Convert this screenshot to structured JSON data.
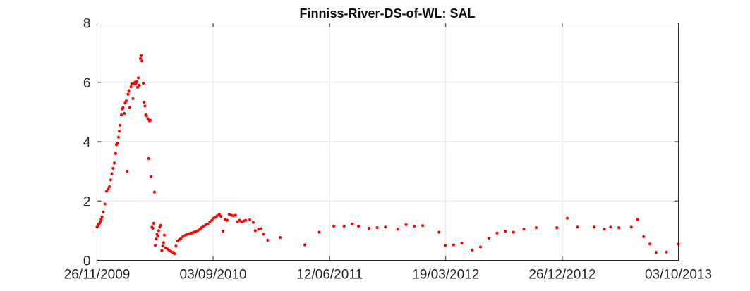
{
  "chart_data": {
    "type": "scatter",
    "title": "Finniss-River-DS-of-WL: SAL",
    "xlabel": "",
    "ylabel": "",
    "x_axis": {
      "kind": "date",
      "range": [
        "2009-11-26",
        "2013-10-03"
      ],
      "ticks": [
        "2009-11-26",
        "2010-09-03",
        "2011-06-12",
        "2012-03-19",
        "2012-12-26",
        "2013-10-03"
      ],
      "tick_labels": [
        "26/11/2009",
        "03/09/2010",
        "12/06/2011",
        "19/03/2012",
        "26/12/2012",
        "03/10/2013"
      ]
    },
    "y_axis": {
      "range": [
        0,
        8
      ],
      "ticks": [
        0,
        2,
        4,
        6,
        8
      ],
      "tick_labels": [
        "0",
        "2",
        "4",
        "6",
        "8"
      ]
    },
    "grid": true,
    "marker_color": "#ff0000",
    "series": [
      {
        "points": [
          [
            "2009-11-26",
            1.12
          ],
          [
            "2009-11-28",
            1.15
          ],
          [
            "2009-11-30",
            1.22
          ],
          [
            "2009-12-02",
            1.25
          ],
          [
            "2009-12-04",
            1.3
          ],
          [
            "2009-12-06",
            1.38
          ],
          [
            "2009-12-08",
            1.47
          ],
          [
            "2009-12-11",
            1.63
          ],
          [
            "2009-12-15",
            1.9
          ],
          [
            "2009-12-19",
            2.33
          ],
          [
            "2009-12-23",
            2.4
          ],
          [
            "2009-12-26",
            2.48
          ],
          [
            "2009-12-29",
            2.71
          ],
          [
            "2010-01-01",
            2.92
          ],
          [
            "2010-01-04",
            3.1
          ],
          [
            "2010-01-07",
            3.28
          ],
          [
            "2010-01-10",
            3.6
          ],
          [
            "2010-01-12",
            3.9
          ],
          [
            "2010-01-14",
            3.95
          ],
          [
            "2010-01-17",
            4.15
          ],
          [
            "2010-01-19",
            4.35
          ],
          [
            "2010-01-21",
            4.55
          ],
          [
            "2010-01-24",
            4.9
          ],
          [
            "2010-01-26",
            5.1
          ],
          [
            "2010-01-28",
            5.15
          ],
          [
            "2010-01-31",
            4.95
          ],
          [
            "2010-02-02",
            5.3
          ],
          [
            "2010-02-05",
            5.37
          ],
          [
            "2010-02-07",
            3.0
          ],
          [
            "2010-02-09",
            5.6
          ],
          [
            "2010-02-11",
            5.7
          ],
          [
            "2010-02-13",
            5.15
          ],
          [
            "2010-02-16",
            5.85
          ],
          [
            "2010-02-18",
            5.95
          ],
          [
            "2010-02-21",
            5.45
          ],
          [
            "2010-02-23",
            5.95
          ],
          [
            "2010-02-26",
            6.0
          ],
          [
            "2010-02-28",
            5.95
          ],
          [
            "2010-03-02",
            6.02
          ],
          [
            "2010-03-04",
            5.83
          ],
          [
            "2010-03-06",
            6.15
          ],
          [
            "2010-03-08",
            5.9
          ],
          [
            "2010-03-11",
            6.8
          ],
          [
            "2010-03-13",
            6.9
          ],
          [
            "2010-03-15",
            6.72
          ],
          [
            "2010-03-18",
            5.97
          ],
          [
            "2010-03-20",
            5.33
          ],
          [
            "2010-03-22",
            5.2
          ],
          [
            "2010-03-24",
            4.9
          ],
          [
            "2010-03-26",
            4.87
          ],
          [
            "2010-03-29",
            4.77
          ],
          [
            "2010-03-31",
            3.43
          ],
          [
            "2010-04-02",
            4.7
          ],
          [
            "2010-04-04",
            4.72
          ],
          [
            "2010-04-06",
            2.82
          ],
          [
            "2010-04-08",
            1.12
          ],
          [
            "2010-04-10",
            1.08
          ],
          [
            "2010-04-12",
            1.25
          ],
          [
            "2010-04-14",
            2.3
          ],
          [
            "2010-04-16",
            0.5
          ],
          [
            "2010-04-18",
            0.72
          ],
          [
            "2010-04-20",
            0.88
          ],
          [
            "2010-04-22",
            0.82
          ],
          [
            "2010-04-24",
            1.0
          ],
          [
            "2010-04-27",
            1.12
          ],
          [
            "2010-04-29",
            1.18
          ],
          [
            "2010-05-02",
            0.33
          ],
          [
            "2010-05-04",
            0.48
          ],
          [
            "2010-05-06",
            0.6
          ],
          [
            "2010-05-08",
            0.85
          ],
          [
            "2010-05-11",
            0.42
          ],
          [
            "2010-05-16",
            0.38
          ],
          [
            "2010-05-20",
            0.33
          ],
          [
            "2010-05-24",
            0.3
          ],
          [
            "2010-05-29",
            0.27
          ],
          [
            "2010-06-02",
            0.22
          ],
          [
            "2010-06-05",
            0.48
          ],
          [
            "2010-06-09",
            0.65
          ],
          [
            "2010-06-13",
            0.7
          ],
          [
            "2010-06-17",
            0.73
          ],
          [
            "2010-06-22",
            0.8
          ],
          [
            "2010-06-28",
            0.85
          ],
          [
            "2010-07-03",
            0.88
          ],
          [
            "2010-07-08",
            0.9
          ],
          [
            "2010-07-13",
            0.92
          ],
          [
            "2010-07-18",
            0.95
          ],
          [
            "2010-07-23",
            0.97
          ],
          [
            "2010-07-28",
            1.0
          ],
          [
            "2010-08-02",
            1.05
          ],
          [
            "2010-08-06",
            1.1
          ],
          [
            "2010-08-11",
            1.15
          ],
          [
            "2010-08-16",
            1.2
          ],
          [
            "2010-08-21",
            1.22
          ],
          [
            "2010-08-26",
            1.3
          ],
          [
            "2010-08-31",
            1.35
          ],
          [
            "2010-09-04",
            1.42
          ],
          [
            "2010-09-08",
            1.45
          ],
          [
            "2010-09-13",
            1.5
          ],
          [
            "2010-09-18",
            1.55
          ],
          [
            "2010-09-22",
            1.48
          ],
          [
            "2010-09-27",
            0.98
          ],
          [
            "2010-10-02",
            1.38
          ],
          [
            "2010-10-07",
            1.35
          ],
          [
            "2010-10-12",
            1.55
          ],
          [
            "2010-10-17",
            1.52
          ],
          [
            "2010-10-22",
            1.5
          ],
          [
            "2010-10-27",
            1.52
          ],
          [
            "2010-11-01",
            1.3
          ],
          [
            "2010-11-06",
            1.35
          ],
          [
            "2010-11-11",
            1.3
          ],
          [
            "2010-11-16",
            1.33
          ],
          [
            "2010-11-21",
            1.35
          ],
          [
            "2010-12-01",
            1.37
          ],
          [
            "2010-12-09",
            1.28
          ],
          [
            "2010-12-14",
            1.0
          ],
          [
            "2010-12-22",
            1.05
          ],
          [
            "2010-12-28",
            1.07
          ],
          [
            "2011-01-03",
            0.88
          ],
          [
            "2011-01-13",
            0.68
          ],
          [
            "2011-02-12",
            0.77
          ],
          [
            "2011-04-13",
            0.52
          ],
          [
            "2011-05-18",
            0.95
          ],
          [
            "2011-06-22",
            1.15
          ],
          [
            "2011-07-17",
            1.15
          ],
          [
            "2011-08-06",
            1.22
          ],
          [
            "2011-08-21",
            1.15
          ],
          [
            "2011-09-15",
            1.08
          ],
          [
            "2011-10-05",
            1.1
          ],
          [
            "2011-10-25",
            1.12
          ],
          [
            "2011-11-24",
            1.05
          ],
          [
            "2011-12-14",
            1.2
          ],
          [
            "2012-01-03",
            1.15
          ],
          [
            "2012-01-23",
            1.17
          ],
          [
            "2012-03-03",
            0.95
          ],
          [
            "2012-03-18",
            0.5
          ],
          [
            "2012-04-07",
            0.52
          ],
          [
            "2012-04-27",
            0.58
          ],
          [
            "2012-05-22",
            0.35
          ],
          [
            "2012-06-11",
            0.45
          ],
          [
            "2012-07-01",
            0.75
          ],
          [
            "2012-07-21",
            0.92
          ],
          [
            "2012-08-10",
            0.98
          ],
          [
            "2012-08-30",
            0.95
          ],
          [
            "2012-09-24",
            1.05
          ],
          [
            "2012-10-24",
            1.1
          ],
          [
            "2012-12-13",
            1.1
          ],
          [
            "2013-01-07",
            1.42
          ],
          [
            "2013-02-01",
            1.12
          ],
          [
            "2013-03-13",
            1.12
          ],
          [
            "2013-04-07",
            1.05
          ],
          [
            "2013-04-22",
            1.12
          ],
          [
            "2013-05-12",
            1.1
          ],
          [
            "2013-06-11",
            1.12
          ],
          [
            "2013-06-26",
            1.38
          ],
          [
            "2013-07-11",
            0.8
          ],
          [
            "2013-07-26",
            0.55
          ],
          [
            "2013-08-10",
            0.27
          ],
          [
            "2013-09-04",
            0.28
          ],
          [
            "2013-10-03",
            0.55
          ]
        ]
      }
    ]
  }
}
